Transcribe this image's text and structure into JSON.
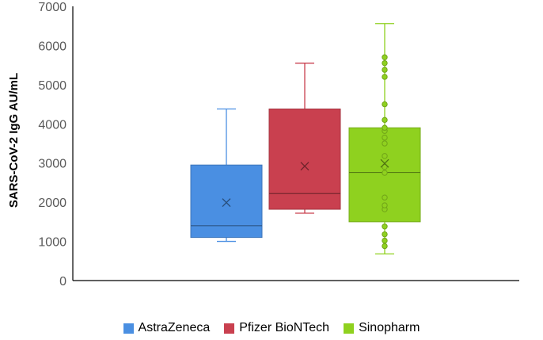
{
  "chart_data": {
    "type": "box",
    "title": "",
    "xlabel": "",
    "ylabel": "SARS-CoV-2 IgG AU/mL",
    "ylim": [
      0,
      7000
    ],
    "yticks": [
      0,
      1000,
      2000,
      3000,
      4000,
      5000,
      6000,
      7000
    ],
    "grid": false,
    "legend_position": "bottom",
    "series": [
      {
        "name": "AstraZeneca",
        "color": "#4a8fe2",
        "whisker_low": 1000,
        "q1": 1100,
        "median": 1400,
        "q3": 2950,
        "whisker_high": 4380,
        "mean": 1990,
        "points": []
      },
      {
        "name": "Pfizer BioNTech",
        "color": "#c9404f",
        "whisker_low": 1720,
        "q1": 1820,
        "median": 2220,
        "q3": 4380,
        "whisker_high": 5550,
        "mean": 2920,
        "points": []
      },
      {
        "name": "Sinopharm",
        "color": "#8fd11f",
        "whisker_low": 680,
        "q1": 1500,
        "median": 2760,
        "q3": 3900,
        "whisker_high": 6560,
        "mean": 2990,
        "points": [
          880,
          1020,
          1180,
          1380,
          1820,
          1920,
          2120,
          2750,
          2900,
          3180,
          3500,
          3650,
          3820,
          3900,
          4100,
          4500,
          5200,
          5380,
          5550,
          5700
        ]
      }
    ]
  }
}
